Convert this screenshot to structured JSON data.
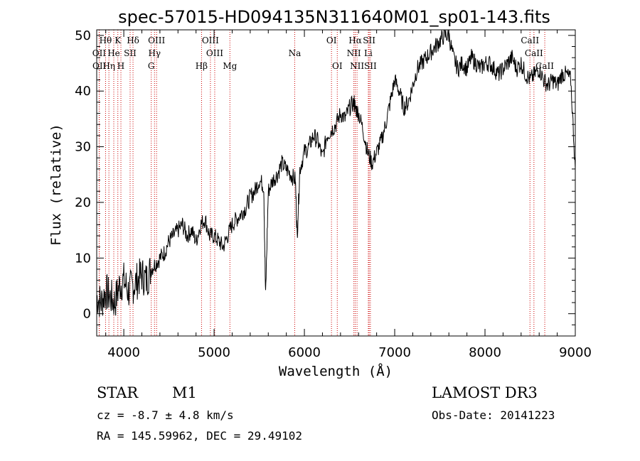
{
  "chart_data": {
    "type": "line",
    "title": "spec-57015-HD094135N311640M01_sp01-143.fits",
    "xlabel": "Wavelength (Å)",
    "ylabel": "Flux (relative)",
    "xlim": [
      3700,
      9000
    ],
    "ylim": [
      -4,
      51
    ],
    "xticks": [
      4000,
      5000,
      6000,
      7000,
      8000,
      9000
    ],
    "yticks": [
      0,
      10,
      20,
      30,
      40,
      50
    ],
    "grid": false,
    "line_color": "#000000",
    "marker_color": "#cc0000",
    "series": [
      {
        "name": "flux",
        "x": [
          3700,
          3750,
          3800,
          3850,
          3900,
          3950,
          4000,
          4050,
          4100,
          4150,
          4200,
          4250,
          4300,
          4350,
          4400,
          4450,
          4500,
          4550,
          4600,
          4650,
          4700,
          4750,
          4800,
          4850,
          4900,
          4950,
          5000,
          5050,
          5100,
          5150,
          5200,
          5250,
          5300,
          5350,
          5400,
          5450,
          5500,
          5550,
          5570,
          5600,
          5650,
          5700,
          5750,
          5800,
          5850,
          5900,
          5920,
          5950,
          6000,
          6050,
          6100,
          6150,
          6200,
          6250,
          6300,
          6350,
          6400,
          6450,
          6500,
          6550,
          6563,
          6600,
          6650,
          6700,
          6750,
          6800,
          6850,
          6900,
          6950,
          7000,
          7050,
          7100,
          7150,
          7200,
          7250,
          7300,
          7350,
          7400,
          7450,
          7500,
          7550,
          7600,
          7650,
          7700,
          7750,
          7800,
          7850,
          7900,
          7950,
          8000,
          8050,
          8100,
          8150,
          8200,
          8250,
          8300,
          8350,
          8400,
          8450,
          8500,
          8550,
          8600,
          8650,
          8700,
          8750,
          8800,
          8850,
          8900,
          8950,
          9000
        ],
        "y": [
          3,
          2,
          4,
          3,
          2,
          5,
          6,
          4,
          5,
          6,
          7,
          6,
          8,
          9,
          10,
          11,
          13,
          14,
          15,
          16,
          14,
          15,
          13,
          16,
          17,
          14,
          14,
          13,
          12,
          14,
          16,
          17,
          18,
          19,
          21,
          22,
          24,
          23,
          3,
          22,
          24,
          25,
          27,
          26,
          25,
          24,
          14,
          26,
          29,
          30,
          32,
          31,
          28,
          32,
          33,
          34,
          36,
          35,
          37,
          38,
          37,
          36,
          33,
          29,
          27,
          29,
          31,
          34,
          38,
          42,
          40,
          37,
          38,
          41,
          44,
          45,
          46,
          47,
          48,
          49,
          50,
          50,
          46,
          44,
          45,
          44,
          46,
          45,
          44,
          45,
          45,
          44,
          43,
          44,
          45,
          46,
          44,
          45,
          43,
          42,
          43,
          44,
          42,
          41,
          42,
          41,
          43,
          43,
          42,
          26
        ]
      }
    ],
    "lines": [
      {
        "label": "Hθ",
        "x": 3798,
        "row": 0
      },
      {
        "label": "K",
        "x": 3934,
        "row": 0
      },
      {
        "label": "Hδ",
        "x": 4102,
        "row": 0
      },
      {
        "label": "OIII",
        "x": 4363,
        "row": 0
      },
      {
        "label": "OIII",
        "x": 4959,
        "row": 0
      },
      {
        "label": "OI",
        "x": 6300,
        "row": 0
      },
      {
        "label": "Hα",
        "x": 6563,
        "row": 0
      },
      {
        "label": "SII",
        "x": 6717,
        "row": 0
      },
      {
        "label": "CaII",
        "x": 8498,
        "row": 0
      },
      {
        "label": "OII",
        "x": 3727,
        "row": 1
      },
      {
        "label": "He",
        "x": 3889,
        "row": 1
      },
      {
        "label": "SII",
        "x": 4070,
        "row": 1
      },
      {
        "label": "Hγ",
        "x": 4340,
        "row": 1
      },
      {
        "label": "OIII",
        "x": 5007,
        "row": 1
      },
      {
        "label": "Na",
        "x": 5893,
        "row": 1
      },
      {
        "label": "NII",
        "x": 6548,
        "row": 1
      },
      {
        "label": "Li",
        "x": 6708,
        "row": 1
      },
      {
        "label": "CaII",
        "x": 8542,
        "row": 1
      },
      {
        "label": "OII",
        "x": 3729,
        "row": 2
      },
      {
        "label": "Hη",
        "x": 3835,
        "row": 2
      },
      {
        "label": "H",
        "x": 3968,
        "row": 2
      },
      {
        "label": "G",
        "x": 4304,
        "row": 2
      },
      {
        "label": "Hβ",
        "x": 4861,
        "row": 2
      },
      {
        "label": "Mg",
        "x": 5175,
        "row": 2
      },
      {
        "label": "OI",
        "x": 6364,
        "row": 2
      },
      {
        "label": "NII",
        "x": 6583,
        "row": 2
      },
      {
        "label": "SII",
        "x": 6731,
        "row": 2
      },
      {
        "label": "CaII",
        "x": 8662,
        "row": 2
      }
    ]
  },
  "info": {
    "class": "STAR",
    "subclass": "M1",
    "survey": "LAMOST DR3",
    "cz": "cz = -8.7 ± 4.8 km/s",
    "obs_date": "Obs-Date: 20141223",
    "radec": "RA = 145.59962, DEC =  29.49102"
  }
}
